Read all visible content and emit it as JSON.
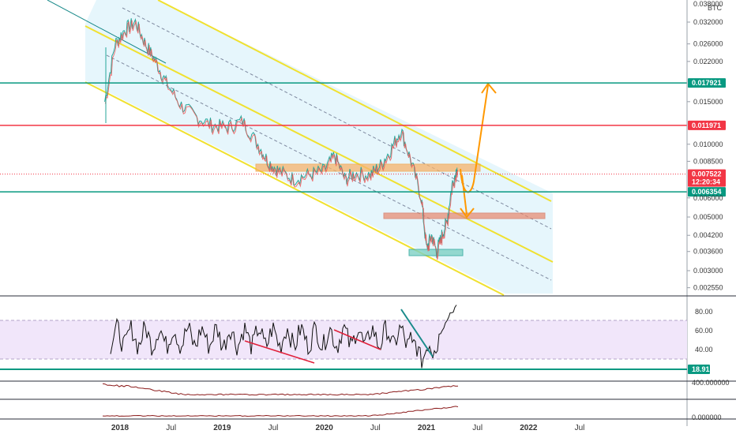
{
  "chart_data": [
    {
      "type": "line",
      "panel": "price",
      "symbol_label": "BTC",
      "scale": "log",
      "ylim": [
        0.0024,
        0.038
      ],
      "y_ticks": [
        {
          "value": 0.032,
          "label": "0.032000"
        },
        {
          "value": 0.026,
          "label": "0.026000"
        },
        {
          "value": 0.022,
          "label": "0.022000"
        },
        {
          "value": 0.015,
          "label": "0.015000"
        },
        {
          "value": 0.01,
          "label": "0.010000"
        },
        {
          "value": 0.0085,
          "label": "0.008500"
        },
        {
          "value": 0.006,
          "label": "0.006000"
        },
        {
          "value": 0.005,
          "label": "0.005000"
        },
        {
          "value": 0.0042,
          "label": "0.004200"
        },
        {
          "value": 0.0036,
          "label": "0.003600"
        },
        {
          "value": 0.003,
          "label": "0.003000"
        },
        {
          "value": 0.00255,
          "label": "0.002550"
        }
      ],
      "x": [
        2017.85,
        2017.95,
        2018.05,
        2018.15,
        2018.25,
        2018.35,
        2018.45,
        2018.6,
        2018.75,
        2018.9,
        2019.05,
        2019.2,
        2019.35,
        2019.45,
        2019.55,
        2019.7,
        2019.85,
        2020.0,
        2020.1,
        2020.2,
        2020.3,
        2020.45,
        2020.55,
        2020.65,
        2020.75,
        2020.85,
        2020.95,
        2021.0,
        2021.05,
        2021.1,
        2021.15,
        2021.2,
        2021.25,
        2021.3
      ],
      "values": [
        0.015,
        0.026,
        0.03,
        0.032,
        0.026,
        0.022,
        0.018,
        0.0145,
        0.013,
        0.012,
        0.0118,
        0.0125,
        0.01,
        0.0085,
        0.0078,
        0.0072,
        0.0075,
        0.0078,
        0.009,
        0.0072,
        0.0076,
        0.0075,
        0.0082,
        0.0095,
        0.0115,
        0.0085,
        0.006,
        0.0037,
        0.0042,
        0.0036,
        0.0042,
        0.0048,
        0.0068,
        0.008
      ],
      "horizontal_lines": [
        {
          "value": 0.017921,
          "label": "0.017921",
          "color": "#089981"
        },
        {
          "value": 0.011971,
          "label": "0.011971",
          "color": "#f23645"
        },
        {
          "value": 0.006354,
          "label": "0.006354",
          "color": "#089981"
        }
      ],
      "current_price": {
        "value": 0.007522,
        "label": "0.007522",
        "countdown": "12:20:34",
        "color": "#f23645"
      },
      "top_tick_partial": "0.038000",
      "colors": {
        "channel": "#f0e130",
        "channel_fill": "#e3f5fc",
        "forecast": "#ff9800",
        "zone": "#f6b26b",
        "support_zone": "#26a69a"
      }
    },
    {
      "type": "line",
      "panel": "rsi",
      "ylim": [
        10,
        95
      ],
      "y_ticks": [
        {
          "value": 80,
          "label": "80.00"
        },
        {
          "value": 60,
          "label": "60.00"
        },
        {
          "value": 40,
          "label": "40.00"
        }
      ],
      "band": [
        30,
        70
      ],
      "support_line": {
        "value": 18.91,
        "label": "18.91",
        "color": "#089981"
      }
    },
    {
      "type": "line",
      "panel": "indicator-1",
      "y_ticks": [
        {
          "value": 400,
          "label": "400.000000"
        }
      ]
    },
    {
      "type": "line",
      "panel": "indicator-2",
      "y_ticks": [
        {
          "value": 0,
          "label": "0.000000"
        }
      ]
    }
  ],
  "x_axis": {
    "ticks": [
      {
        "value": 2018.0,
        "label": "2018",
        "bold": true
      },
      {
        "value": 2018.5,
        "label": "Jul",
        "bold": false
      },
      {
        "value": 2019.0,
        "label": "2019",
        "bold": true
      },
      {
        "value": 2019.5,
        "label": "Jul",
        "bold": false
      },
      {
        "value": 2020.0,
        "label": "2020",
        "bold": true
      },
      {
        "value": 2020.5,
        "label": "Jul",
        "bold": false
      },
      {
        "value": 2021.0,
        "label": "2021",
        "bold": true
      },
      {
        "value": 2021.5,
        "label": "Jul",
        "bold": false
      },
      {
        "value": 2022.0,
        "label": "2022",
        "bold": true
      },
      {
        "value": 2022.5,
        "label": "Jul",
        "bold": false
      }
    ]
  }
}
